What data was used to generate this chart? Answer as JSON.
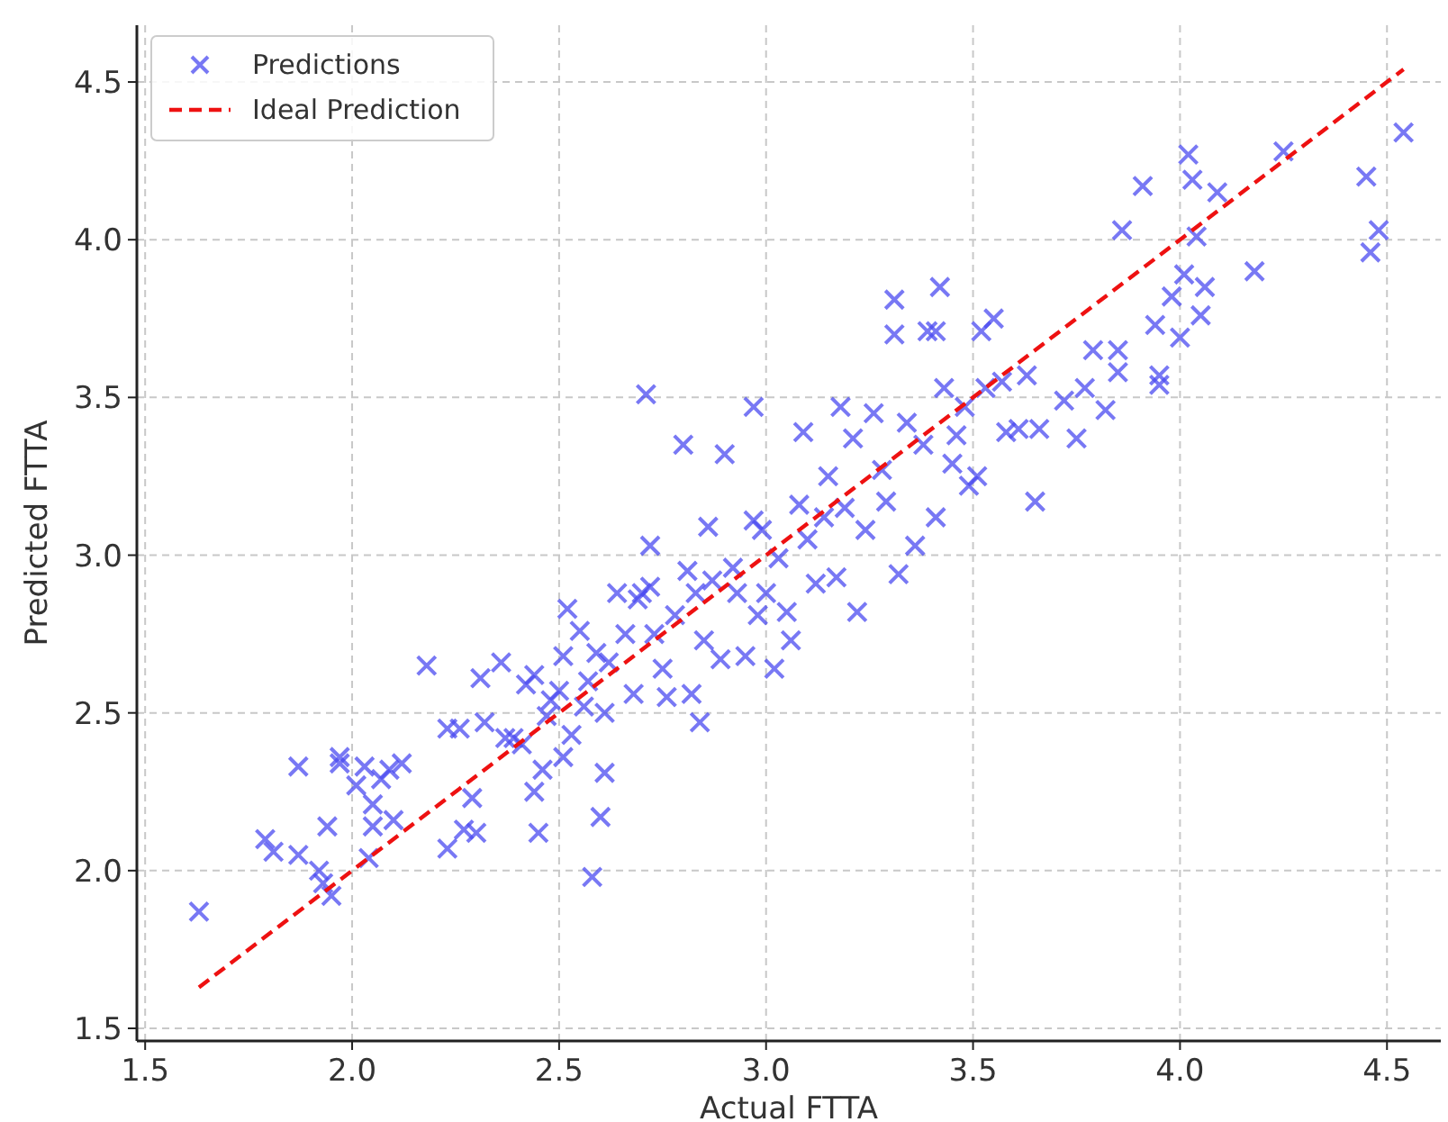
{
  "chart_data": {
    "type": "scatter",
    "xlabel": "Actual FTTA",
    "ylabel": "Predicted FTTA",
    "xlim": [
      1.48,
      4.63
    ],
    "ylim": [
      1.46,
      4.68
    ],
    "xticks": [
      1.5,
      {
        "value": 2,
        "label": "2.0"
      },
      2.5,
      {
        "value": 3,
        "label": "3.0"
      },
      3.5,
      {
        "value": 4,
        "label": "4.0"
      },
      4.5
    ],
    "yticks": [
      1.5,
      {
        "value": 2,
        "label": "2.0"
      },
      2.5,
      {
        "value": 3,
        "label": "3.0"
      },
      3.5,
      {
        "value": 4,
        "label": "4.0"
      },
      4.5
    ],
    "grid": true,
    "legend": "top left",
    "series": [
      {
        "name": "Predictions",
        "marker": "cross",
        "color": "#4b4bf0",
        "x": [
          1.63,
          1.79,
          1.81,
          1.87,
          1.87,
          1.92,
          1.93,
          1.95,
          1.94,
          1.97,
          1.97,
          2.01,
          2.03,
          2.05,
          2.05,
          2.04,
          2.07,
          2.09,
          2.1,
          2.12,
          2.18,
          2.23,
          2.23,
          2.26,
          2.27,
          2.29,
          2.3,
          2.31,
          2.32,
          2.36,
          2.37,
          2.39,
          2.41,
          2.42,
          2.44,
          2.44,
          2.45,
          2.46,
          2.47,
          2.48,
          2.5,
          2.51,
          2.51,
          2.52,
          2.53,
          2.55,
          2.56,
          2.57,
          2.58,
          2.59,
          2.6,
          2.61,
          2.61,
          2.62,
          2.64,
          2.66,
          2.68,
          2.69,
          2.7,
          2.71,
          2.72,
          2.72,
          2.73,
          2.75,
          2.76,
          2.78,
          2.8,
          2.81,
          2.82,
          2.83,
          2.84,
          2.85,
          2.86,
          2.87,
          2.89,
          2.9,
          2.92,
          2.93,
          2.95,
          2.97,
          2.97,
          2.98,
          2.99,
          3.0,
          3.02,
          3.03,
          3.05,
          3.06,
          3.08,
          3.09,
          3.1,
          3.12,
          3.14,
          3.15,
          3.17,
          3.18,
          3.19,
          3.21,
          3.22,
          3.24,
          3.26,
          3.28,
          3.29,
          3.31,
          3.31,
          3.32,
          3.34,
          3.36,
          3.38,
          3.39,
          3.41,
          3.42,
          3.41,
          3.43,
          3.45,
          3.46,
          3.48,
          3.49,
          3.51,
          3.52,
          3.53,
          3.55,
          3.57,
          3.58,
          3.61,
          3.63,
          3.65,
          3.66,
          3.72,
          3.75,
          3.77,
          3.79,
          3.82,
          3.85,
          3.85,
          3.86,
          3.91,
          3.95,
          3.95,
          3.94,
          3.98,
          4.0,
          4.01,
          4.02,
          4.03,
          4.04,
          4.05,
          4.06,
          4.09,
          4.18,
          4.25,
          4.45,
          4.46,
          4.48,
          4.54
        ],
        "values": [
          1.87,
          2.1,
          2.06,
          2.05,
          2.33,
          2.0,
          1.96,
          1.92,
          2.14,
          2.36,
          2.34,
          2.27,
          2.33,
          2.21,
          2.14,
          2.04,
          2.29,
          2.32,
          2.16,
          2.34,
          2.65,
          2.07,
          2.45,
          2.45,
          2.13,
          2.23,
          2.12,
          2.61,
          2.47,
          2.66,
          2.42,
          2.42,
          2.4,
          2.59,
          2.62,
          2.25,
          2.12,
          2.32,
          2.49,
          2.54,
          2.57,
          2.36,
          2.68,
          2.83,
          2.43,
          2.76,
          2.52,
          2.6,
          1.98,
          2.69,
          2.17,
          2.31,
          2.5,
          2.66,
          2.88,
          2.75,
          2.56,
          2.86,
          2.88,
          3.51,
          3.03,
          2.9,
          2.75,
          2.64,
          2.55,
          2.81,
          3.35,
          2.95,
          2.56,
          2.88,
          2.47,
          2.73,
          3.09,
          2.92,
          2.67,
          3.32,
          2.96,
          2.88,
          2.68,
          3.47,
          3.11,
          2.81,
          3.08,
          2.88,
          2.64,
          2.99,
          2.82,
          2.73,
          3.16,
          3.39,
          3.05,
          2.91,
          3.12,
          3.25,
          2.93,
          3.47,
          3.15,
          3.37,
          2.82,
          3.08,
          3.45,
          3.27,
          3.17,
          3.81,
          3.7,
          2.94,
          3.42,
          3.03,
          3.35,
          3.71,
          3.71,
          3.85,
          3.12,
          3.53,
          3.29,
          3.38,
          3.47,
          3.22,
          3.25,
          3.71,
          3.53,
          3.75,
          3.55,
          3.39,
          3.4,
          3.57,
          3.17,
          3.4,
          3.49,
          3.37,
          3.53,
          3.65,
          3.46,
          3.65,
          3.58,
          4.03,
          4.17,
          3.54,
          3.57,
          3.73,
          3.82,
          3.69,
          3.89,
          4.27,
          4.19,
          4.01,
          3.76,
          3.85,
          4.15,
          3.9,
          4.28,
          4.2,
          3.96,
          4.03,
          4.34
        ]
      },
      {
        "name": "Ideal Prediction",
        "type": "line",
        "line_style": "dashed",
        "color": "#ee1111",
        "x": [
          1.63,
          4.54
        ],
        "values": [
          1.63,
          4.54
        ]
      }
    ]
  }
}
